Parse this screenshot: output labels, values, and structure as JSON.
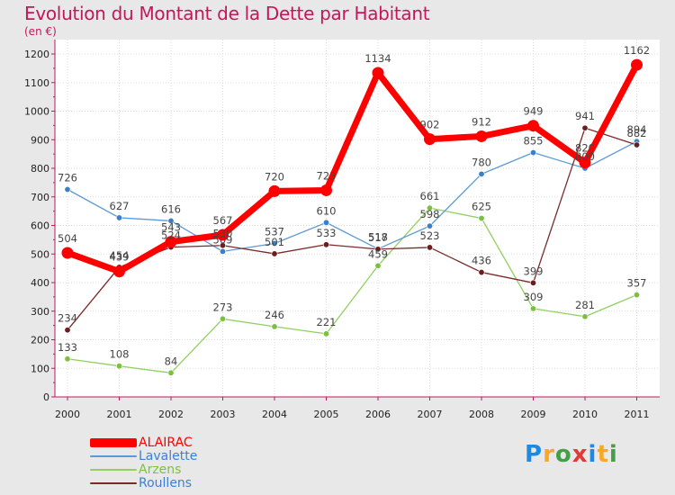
{
  "title": "Evolution du Montant de la Dette par Habitant",
  "subtitle": "(en €)",
  "chart_data": {
    "type": "line",
    "title": "Evolution du Montant de la Dette par Habitant",
    "subtitle": "(en €)",
    "x": [
      "2000",
      "2001",
      "2002",
      "2003",
      "2004",
      "2005",
      "2006",
      "2007",
      "2008",
      "2009",
      "2010",
      "2011"
    ],
    "ylim": [
      0,
      1200
    ],
    "yticks": [
      "0",
      "100",
      "200",
      "300",
      "400",
      "500",
      "600",
      "700",
      "800",
      "900",
      "1000",
      "1100",
      "1200"
    ],
    "grid": true,
    "legend_position": "bottom-left",
    "series": [
      {
        "name": "ALAIRAC",
        "color": "#ff0000",
        "values": [
          504,
          439,
          543,
          567,
          720,
          723,
          1134,
          902,
          912,
          949,
          820,
          1162
        ]
      },
      {
        "name": "Lavalette",
        "color": "#5b9bd5",
        "values": [
          726,
          627,
          616,
          509,
          537,
          610,
          518,
          598,
          780,
          855,
          800,
          894
        ]
      },
      {
        "name": "Arzens",
        "color": "#90d060",
        "values": [
          133,
          108,
          84,
          273,
          246,
          221,
          459,
          661,
          625,
          309,
          281,
          357
        ]
      },
      {
        "name": "Roullens",
        "color": "#7b2a2a",
        "values": [
          234,
          454,
          524,
          530,
          501,
          533,
          517,
          523,
          436,
          399,
          941,
          882
        ]
      }
    ]
  },
  "brand": {
    "letters": [
      "P",
      "r",
      "o",
      "x",
      "i",
      "t",
      "i"
    ],
    "colors": [
      "#1e88e5",
      "#f9a825",
      "#43a047",
      "#e53935",
      "#1e88e5",
      "#f9a825",
      "#43a047"
    ]
  }
}
